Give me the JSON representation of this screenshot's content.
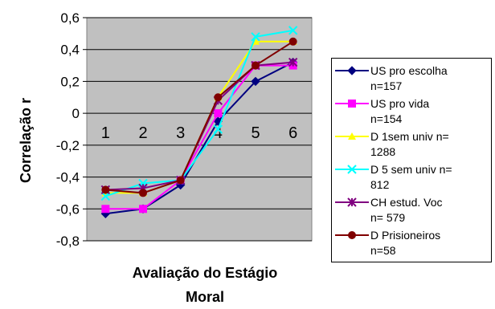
{
  "chart_data": {
    "type": "line",
    "ylabel": "Correlação r",
    "xlabel": "Avaliação do Estágio Moral",
    "xlabel_lines": [
      "Avaliação do Estágio",
      "Moral"
    ],
    "ylim": [
      -0.8,
      0.6
    ],
    "yticks": [
      -0.8,
      -0.6,
      -0.4,
      -0.2,
      0,
      0.2,
      0.4,
      0.6
    ],
    "ytick_labels": [
      "-0,8",
      "-0,6",
      "-0,4",
      "-0,2",
      "0",
      "0,2",
      "0,4",
      "0,6"
    ],
    "categories": [
      "1",
      "2",
      "3",
      "4",
      "5",
      "6"
    ],
    "grid": true,
    "plot_background": "#c0c0c0",
    "legend_position": "right",
    "series": [
      {
        "name": "US pro escolha n=157",
        "label_lines": [
          "US pro escolha",
          "n=157"
        ],
        "color": "#000080",
        "marker": "diamond",
        "values": [
          -0.63,
          -0.6,
          -0.45,
          -0.05,
          0.2,
          0.32
        ]
      },
      {
        "name": "US pro vida n=154",
        "label_lines": [
          "US pro vida",
          "n=154"
        ],
        "color": "#ff00ff",
        "marker": "square",
        "values": [
          -0.6,
          -0.6,
          -0.42,
          0.0,
          0.3,
          0.3
        ]
      },
      {
        "name": "D 1sem univ n= 1288",
        "label_lines": [
          "D 1sem univ n=",
          "1288"
        ],
        "color": "#ffff00",
        "marker": "triangle",
        "values": [
          -0.5,
          -0.5,
          -0.42,
          0.1,
          0.45,
          0.45
        ]
      },
      {
        "name": "D 5 sem univ n= 812",
        "label_lines": [
          "D 5 sem univ n=",
          "812"
        ],
        "color": "#00ffff",
        "marker": "x",
        "values": [
          -0.52,
          -0.44,
          -0.42,
          -0.1,
          0.48,
          0.52
        ]
      },
      {
        "name": "CH estud. Voc n= 579",
        "label_lines": [
          "CH estud. Voc",
          "n= 579"
        ],
        "color": "#800080",
        "marker": "star",
        "values": [
          -0.48,
          -0.47,
          -0.42,
          0.08,
          0.3,
          0.32
        ]
      },
      {
        "name": "D Prisioneiros n=58",
        "label_lines": [
          "D Prisioneiros",
          "n=58"
        ],
        "color": "#800000",
        "marker": "circle",
        "values": [
          -0.48,
          -0.5,
          -0.42,
          0.1,
          0.3,
          0.45
        ]
      }
    ]
  }
}
